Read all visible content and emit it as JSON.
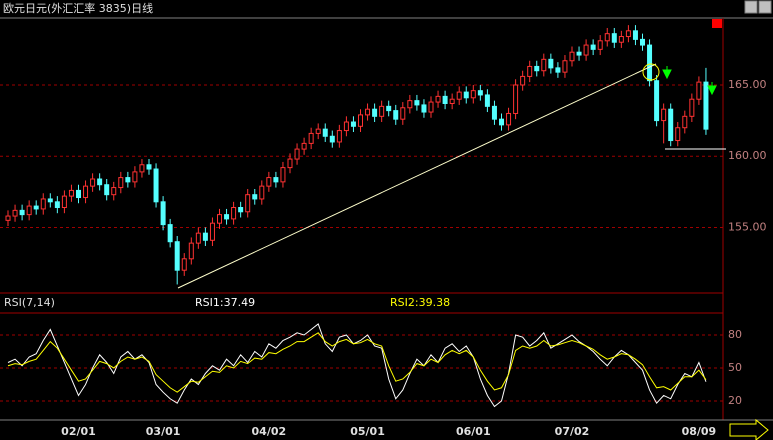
{
  "chart_data": [
    {
      "type": "candlestick",
      "title": "欧元日元(外汇汇率 3835)日线",
      "up_color": "#ff3232",
      "down_color": "#54ffff",
      "grid": true,
      "ylim": [
        150.4,
        169.7
      ],
      "yticks": [
        {
          "value": 155,
          "label": "155.00"
        },
        {
          "value": 160,
          "label": "160.00"
        },
        {
          "value": 165,
          "label": "165.00"
        }
      ],
      "categories": [
        null,
        null,
        null,
        null,
        null,
        null,
        null,
        null,
        null,
        null,
        "02/01",
        null,
        null,
        null,
        null,
        null,
        null,
        null,
        null,
        null,
        null,
        null,
        "03/01",
        null,
        null,
        null,
        null,
        null,
        null,
        null,
        null,
        null,
        null,
        null,
        null,
        null,
        null,
        "04/02",
        null,
        null,
        null,
        null,
        null,
        null,
        null,
        null,
        null,
        null,
        null,
        null,
        null,
        "05/01",
        null,
        null,
        null,
        null,
        null,
        null,
        null,
        null,
        null,
        null,
        null,
        null,
        null,
        null,
        "06/01",
        null,
        null,
        null,
        null,
        null,
        null,
        null,
        null,
        null,
        null,
        null,
        null,
        null,
        "07/02",
        null,
        null,
        null,
        null,
        null,
        null,
        null,
        null,
        null,
        null,
        null,
        null,
        null,
        null,
        null,
        null,
        null,
        "08/09",
        null
      ],
      "open": [
        155.5,
        155.8,
        156.2,
        155.9,
        156.5,
        156.3,
        157.0,
        156.8,
        156.4,
        157.2,
        157.6,
        157.1,
        157.9,
        158.4,
        158.0,
        157.3,
        157.8,
        158.5,
        158.2,
        158.9,
        159.4,
        159.1,
        156.8,
        155.2,
        154.0,
        152.0,
        152.8,
        153.9,
        154.6,
        154.1,
        155.3,
        155.9,
        155.6,
        156.4,
        156.1,
        157.3,
        157.0,
        157.9,
        158.5,
        158.2,
        159.2,
        159.8,
        160.5,
        160.9,
        161.6,
        161.9,
        161.4,
        161.0,
        161.8,
        162.4,
        162.1,
        162.9,
        163.3,
        162.8,
        163.5,
        163.2,
        162.6,
        163.4,
        163.9,
        163.6,
        163.1,
        163.8,
        164.2,
        163.7,
        164.0,
        164.5,
        164.1,
        164.6,
        164.3,
        163.5,
        162.6,
        162.2,
        163.0,
        165.0,
        165.6,
        166.3,
        166.0,
        166.8,
        166.2,
        165.9,
        166.7,
        167.3,
        167.1,
        167.8,
        167.5,
        168.1,
        168.6,
        168.0,
        168.4,
        168.8,
        168.2,
        167.8,
        165.3,
        162.5,
        163.3,
        161.1,
        162.0,
        162.8,
        164.0,
        165.2
      ],
      "high": [
        156.2,
        156.6,
        156.6,
        156.9,
        156.9,
        157.4,
        157.4,
        157.2,
        157.6,
        158.0,
        158.0,
        158.3,
        158.8,
        158.8,
        158.4,
        158.2,
        158.9,
        158.9,
        159.3,
        159.8,
        159.8,
        159.5,
        157.2,
        155.6,
        154.4,
        153.2,
        154.3,
        155.0,
        155.0,
        155.7,
        156.3,
        156.3,
        156.8,
        156.8,
        157.7,
        157.7,
        158.3,
        158.9,
        158.9,
        159.6,
        160.2,
        160.9,
        161.3,
        162.0,
        162.3,
        162.3,
        161.8,
        162.2,
        162.8,
        162.8,
        163.3,
        163.7,
        163.7,
        163.9,
        163.9,
        163.6,
        163.8,
        164.3,
        164.3,
        164.0,
        164.2,
        164.6,
        164.6,
        164.4,
        164.9,
        164.9,
        165.0,
        165.0,
        164.7,
        163.9,
        163.0,
        163.4,
        165.4,
        166.0,
        166.7,
        166.7,
        167.2,
        167.2,
        166.6,
        167.1,
        167.7,
        167.7,
        168.2,
        168.2,
        168.5,
        169.0,
        169.0,
        168.8,
        169.2,
        169.2,
        168.6,
        168.2,
        165.7,
        163.7,
        163.7,
        162.4,
        163.2,
        164.4,
        165.6,
        166.2
      ],
      "low": [
        155.1,
        155.4,
        155.5,
        155.5,
        155.9,
        155.9,
        156.4,
        156.0,
        156.0,
        156.8,
        156.7,
        156.7,
        157.5,
        157.6,
        156.9,
        156.9,
        157.4,
        157.8,
        157.8,
        158.5,
        158.7,
        156.4,
        154.8,
        153.6,
        151.0,
        151.6,
        152.4,
        153.5,
        153.7,
        153.7,
        154.9,
        155.2,
        155.2,
        155.7,
        155.7,
        156.6,
        156.6,
        157.5,
        157.8,
        157.8,
        158.8,
        159.4,
        160.1,
        160.5,
        161.2,
        161.0,
        160.6,
        160.6,
        161.4,
        161.7,
        161.7,
        162.5,
        162.4,
        162.4,
        162.8,
        162.2,
        162.2,
        163.0,
        163.2,
        162.7,
        162.7,
        163.4,
        163.3,
        163.3,
        163.6,
        163.7,
        163.7,
        163.9,
        163.1,
        162.2,
        161.8,
        161.8,
        162.6,
        164.6,
        165.2,
        165.6,
        165.6,
        165.8,
        165.5,
        165.5,
        166.3,
        166.7,
        166.7,
        167.1,
        167.1,
        167.7,
        167.6,
        167.6,
        168.0,
        167.8,
        167.4,
        164.9,
        162.1,
        160.9,
        160.7,
        160.7,
        161.6,
        162.4,
        163.6,
        161.5
      ],
      "close": [
        155.8,
        156.2,
        155.9,
        156.5,
        156.3,
        157.0,
        156.8,
        156.4,
        157.2,
        157.6,
        157.1,
        157.9,
        158.4,
        158.0,
        157.3,
        157.8,
        158.5,
        158.2,
        158.9,
        159.4,
        159.1,
        156.8,
        155.2,
        154.0,
        152.0,
        152.8,
        153.9,
        154.6,
        154.1,
        155.3,
        155.9,
        155.6,
        156.4,
        156.1,
        157.3,
        157.0,
        157.9,
        158.5,
        158.2,
        159.2,
        159.8,
        160.5,
        160.9,
        161.6,
        161.9,
        161.4,
        161.0,
        161.8,
        162.4,
        162.1,
        162.9,
        163.3,
        162.8,
        163.5,
        163.2,
        162.6,
        163.4,
        163.9,
        163.6,
        163.1,
        163.8,
        164.2,
        163.7,
        164.0,
        164.5,
        164.1,
        164.6,
        164.3,
        163.5,
        162.6,
        162.2,
        163.0,
        165.0,
        165.6,
        166.3,
        166.0,
        166.8,
        166.2,
        165.9,
        166.7,
        167.3,
        167.1,
        167.8,
        167.5,
        168.1,
        168.6,
        168.0,
        168.4,
        168.8,
        168.2,
        167.8,
        165.3,
        162.5,
        163.3,
        161.1,
        162.0,
        162.8,
        164.0,
        165.2,
        161.9
      ]
    },
    {
      "type": "line",
      "title": "RSI(7,14)",
      "grid": true,
      "ylim": [
        2.7,
        100
      ],
      "yticks": [
        20,
        50,
        80
      ],
      "legend_labels": [
        "RSI1:37.49",
        "RSI2:39.38"
      ],
      "series": [
        {
          "name": "RSI1",
          "color": "#ffffff",
          "values": [
            55,
            58,
            52,
            60,
            63,
            75,
            85,
            70,
            55,
            40,
            25,
            35,
            50,
            62,
            55,
            45,
            60,
            65,
            58,
            62,
            55,
            35,
            28,
            22,
            18,
            30,
            40,
            35,
            45,
            52,
            48,
            58,
            52,
            62,
            55,
            65,
            60,
            72,
            68,
            75,
            78,
            82,
            80,
            85,
            90,
            72,
            65,
            78,
            80,
            72,
            75,
            80,
            70,
            68,
            40,
            22,
            30,
            45,
            58,
            52,
            62,
            55,
            68,
            72,
            65,
            70,
            60,
            40,
            25,
            15,
            20,
            45,
            80,
            78,
            70,
            75,
            82,
            68,
            72,
            76,
            80,
            74,
            70,
            65,
            58,
            52,
            60,
            66,
            62,
            55,
            48,
            30,
            18,
            25,
            22,
            35,
            45,
            42,
            55,
            37.49
          ]
        },
        {
          "name": "RSI2",
          "color": "#ffff00",
          "values": [
            52,
            54,
            53,
            56,
            58,
            66,
            74,
            68,
            58,
            48,
            38,
            40,
            48,
            56,
            54,
            50,
            56,
            60,
            58,
            60,
            56,
            44,
            38,
            32,
            28,
            33,
            38,
            37,
            42,
            47,
            46,
            52,
            50,
            56,
            54,
            59,
            58,
            64,
            63,
            67,
            70,
            74,
            74,
            78,
            82,
            74,
            70,
            74,
            76,
            72,
            73,
            76,
            72,
            70,
            52,
            38,
            40,
            46,
            54,
            52,
            58,
            55,
            62,
            66,
            63,
            66,
            60,
            48,
            38,
            30,
            32,
            44,
            66,
            70,
            68,
            70,
            75,
            70,
            71,
            73,
            75,
            73,
            70,
            67,
            62,
            58,
            60,
            63,
            62,
            58,
            53,
            42,
            32,
            33,
            30,
            36,
            42,
            42,
            48,
            39.38
          ]
        }
      ]
    }
  ]
}
